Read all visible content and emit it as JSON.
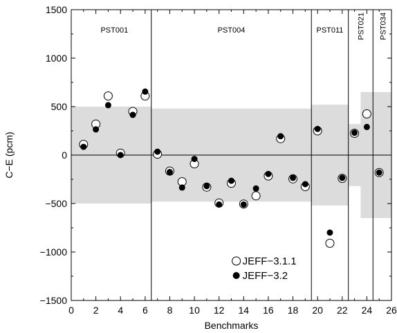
{
  "chart_data": {
    "type": "scatter",
    "xlabel": "Benchmarks",
    "ylabel": "C−E (pcm)",
    "xlim": [
      0,
      26
    ],
    "ylim": [
      -1500,
      1500
    ],
    "x_ticks": [
      0,
      2,
      4,
      6,
      8,
      10,
      12,
      14,
      16,
      18,
      20,
      22,
      24,
      26
    ],
    "y_ticks": [
      -1500,
      -1000,
      -500,
      0,
      500,
      1000,
      1500
    ],
    "y_tick_labels": [
      "−1500",
      "−1000",
      "−500",
      "0",
      "500",
      "1000",
      "1500"
    ],
    "zero_line": true,
    "grid": false,
    "section_dividers": [
      6.5,
      19.5,
      22.5,
      24.5
    ],
    "sections": [
      {
        "label": "PST001",
        "x": 3.5,
        "vertical": false
      },
      {
        "label": "PST004",
        "x": 13,
        "vertical": false
      },
      {
        "label": "PST011",
        "x": 21,
        "vertical": false
      },
      {
        "label": "PST021",
        "x": 23.5,
        "vertical": true
      },
      {
        "label": "PST034",
        "x": 25.3,
        "vertical": true
      }
    ],
    "uncertainty_bands": [
      {
        "x0": 0,
        "x1": 6.5,
        "y0": -500,
        "y1": 500
      },
      {
        "x0": 6.5,
        "x1": 19.5,
        "y0": -480,
        "y1": 480
      },
      {
        "x0": 19.5,
        "x1": 22.5,
        "y0": -520,
        "y1": 520
      },
      {
        "x0": 22.5,
        "x1": 23.5,
        "y0": -320,
        "y1": 320
      },
      {
        "x0": 23.5,
        "x1": 26,
        "y0": -650,
        "y1": 650
      }
    ],
    "legend_position": "center-bottom",
    "series": [
      {
        "name": "JEFF−3.1.1",
        "marker": "open-circle",
        "x": [
          1,
          2,
          3,
          4,
          5,
          6,
          7,
          8,
          9,
          10,
          11,
          12,
          13,
          14,
          15,
          16,
          17,
          18,
          19,
          20,
          21,
          22,
          23,
          24,
          25
        ],
        "y": [
          110,
          320,
          610,
          20,
          450,
          610,
          10,
          -165,
          -275,
          -90,
          -330,
          -495,
          -290,
          -505,
          -420,
          -215,
          170,
          -245,
          -325,
          250,
          -910,
          -240,
          225,
          425,
          -180
        ]
      },
      {
        "name": "JEFF−3.2",
        "marker": "filled-circle",
        "x": [
          1,
          2,
          3,
          4,
          5,
          6,
          7,
          8,
          9,
          10,
          11,
          12,
          13,
          14,
          15,
          16,
          17,
          18,
          19,
          20,
          21,
          22,
          23,
          24,
          25
        ],
        "y": [
          85,
          265,
          515,
          0,
          415,
          655,
          35,
          -175,
          -335,
          -40,
          -320,
          -510,
          -265,
          -510,
          -345,
          -195,
          195,
          -235,
          -300,
          270,
          -800,
          -235,
          230,
          290,
          -180
        ]
      }
    ]
  }
}
